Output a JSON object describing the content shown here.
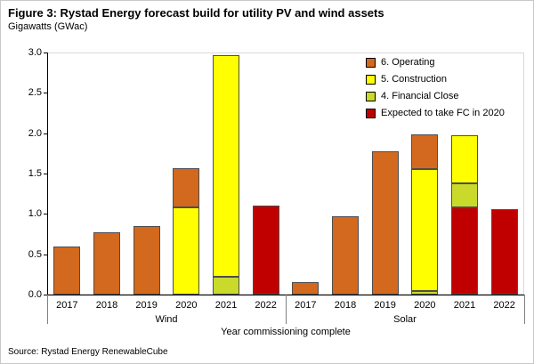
{
  "figure": {
    "source": "Source: Rystad Energy RenewableCube"
  },
  "chart_data": {
    "type": "bar",
    "stacked": true,
    "title": "Figure 3: Rystad Energy forecast build for utility PV and wind assets",
    "subtitle": "Gigawatts (GWac)",
    "xlabel": "Year commissioning complete",
    "ylabel": "Gigawatts (GWac)",
    "ylim": [
      0,
      3.0
    ],
    "ytick_step": 0.5,
    "yticks": [
      "0.0",
      "0.5",
      "1.0",
      "1.5",
      "2.0",
      "2.5",
      "3.0"
    ],
    "grid": false,
    "legend_position": "inside-top-right",
    "stack_order_bottom_to_top": [
      "Expected to take FC in 2020",
      "4. Financial Close",
      "5. Construction",
      "6. Operating"
    ],
    "groups": [
      {
        "label": "Wind",
        "key": "wind",
        "categories": [
          "2017",
          "2018",
          "2019",
          "2020",
          "2021",
          "2022"
        ]
      },
      {
        "label": "Solar",
        "key": "solar",
        "categories": [
          "2017",
          "2018",
          "2019",
          "2020",
          "2021",
          "2022"
        ]
      }
    ],
    "series": [
      {
        "name": "6. Operating",
        "color": "#D2691E",
        "values": {
          "wind": [
            0.6,
            0.77,
            0.85,
            0.49,
            0,
            0
          ],
          "solar": [
            0.15,
            0.97,
            1.78,
            0.43,
            0,
            0
          ]
        }
      },
      {
        "name": "5. Construction",
        "color": "#FFFF00",
        "values": {
          "wind": [
            0,
            0,
            0,
            1.08,
            2.75,
            0
          ],
          "solar": [
            0,
            0,
            0,
            1.51,
            0.59,
            0
          ]
        }
      },
      {
        "name": "4. Financial Close",
        "color": "#C9DA2B",
        "values": {
          "wind": [
            0,
            0,
            0,
            0,
            0.22,
            0
          ],
          "solar": [
            0,
            0,
            0,
            0.04,
            0.3,
            0
          ]
        }
      },
      {
        "name": "Expected to take FC in 2020",
        "color": "#C00000",
        "values": {
          "wind": [
            0,
            0,
            0,
            0,
            0,
            1.1
          ],
          "solar": [
            0,
            0,
            0,
            0,
            1.08,
            1.06
          ]
        }
      }
    ]
  }
}
